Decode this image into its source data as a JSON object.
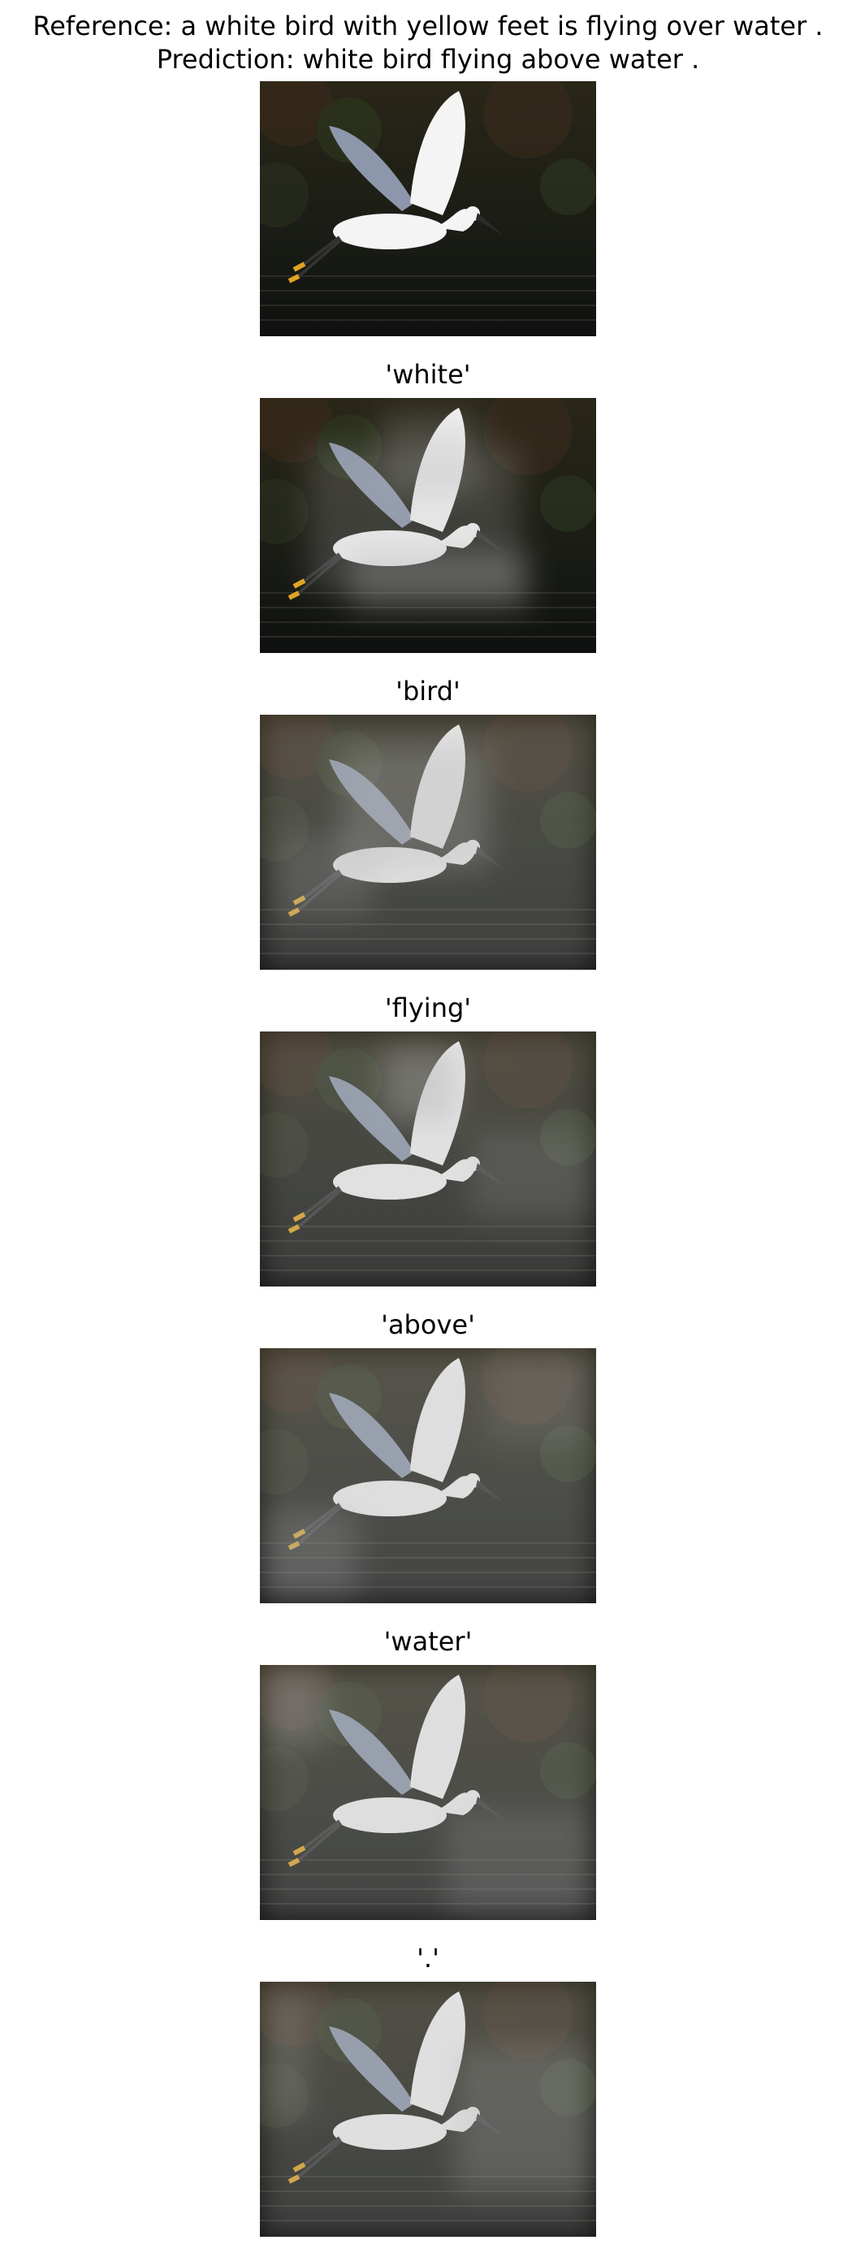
{
  "figure": {
    "reference_line": "Reference: a white bird with yellow feet is flying over water .",
    "prediction_line": "Prediction: white bird flying above water ."
  },
  "panels": [
    {
      "caption": ""
    },
    {
      "caption": "'white'"
    },
    {
      "caption": "'bird'"
    },
    {
      "caption": "'flying'"
    },
    {
      "caption": "'above'"
    },
    {
      "caption": "'water'"
    },
    {
      "caption": "'.'"
    }
  ],
  "colors": {
    "background": "#1b1d16",
    "bird": "#f4f4f4",
    "wing_shadow": "#8c97ab",
    "beak": "#2a2a2a",
    "feet": "#e0a421",
    "overlay": "#b0b0b0"
  }
}
